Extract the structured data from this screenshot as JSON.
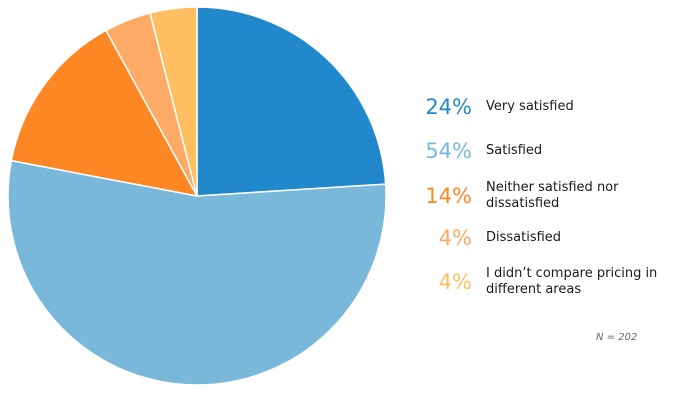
{
  "chart_data": {
    "type": "pie",
    "start_angle_deg": 0,
    "direction": "clockwise",
    "slices": [
      {
        "label": "Very satisfied",
        "value": 24,
        "display": "24%",
        "color": "#2288cc"
      },
      {
        "label": "Satisfied",
        "value": 54,
        "display": "54%",
        "color": "#7ab8db"
      },
      {
        "label": "Neither satisfied nor dissatisfied",
        "value": 14,
        "display": "14%",
        "color": "#fe8724"
      },
      {
        "label": "Dissatisfied",
        "value": 4,
        "display": "4%",
        "color": "#feaa67"
      },
      {
        "label": "I didn’t compare pricing in different areas",
        "value": 4,
        "display": "4%",
        "color": "#ffbf60"
      }
    ],
    "legend_position": "right",
    "note": "N = 202"
  }
}
